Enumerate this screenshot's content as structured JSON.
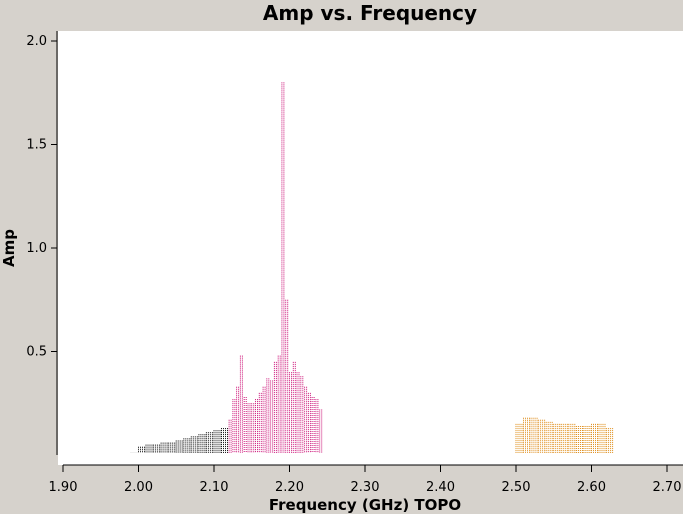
{
  "chart_data": {
    "type": "scatter",
    "title": "Amp vs. Frequency",
    "xlabel": "Frequency (GHz) TOPO",
    "ylabel": "Amp",
    "xlim": [
      1.9,
      2.7
    ],
    "ylim": [
      0.0,
      2.0
    ],
    "xticks": [
      "1.90",
      "2.00",
      "2.10",
      "2.20",
      "2.30",
      "2.40",
      "2.50",
      "2.60",
      "2.70"
    ],
    "yticks": [
      "0.5",
      "1.0",
      "1.5",
      "2.0"
    ],
    "grid": false,
    "series": [
      {
        "color": "#000000",
        "x": [
          1.99,
          2.0,
          2.01,
          2.02,
          2.03,
          2.04,
          2.05,
          2.06,
          2.07,
          2.08,
          2.09,
          2.1,
          2.11
        ],
        "y": [
          0.01,
          0.04,
          0.05,
          0.05,
          0.06,
          0.06,
          0.07,
          0.08,
          0.09,
          0.1,
          0.11,
          0.12,
          0.13
        ]
      },
      {
        "color": "#cc1177",
        "x": [
          2.12,
          2.125,
          2.13,
          2.135,
          2.14,
          2.145,
          2.15,
          2.155,
          2.16,
          2.165,
          2.17,
          2.175,
          2.18,
          2.185,
          2.19,
          2.195,
          2.2,
          2.205,
          2.21,
          2.215,
          2.22,
          2.225,
          2.23,
          2.235,
          2.24
        ],
        "y": [
          0.17,
          0.27,
          0.33,
          0.48,
          0.28,
          0.25,
          0.25,
          0.27,
          0.3,
          0.33,
          0.37,
          0.36,
          0.45,
          0.48,
          1.8,
          0.75,
          0.4,
          0.45,
          0.4,
          0.38,
          0.33,
          0.3,
          0.28,
          0.27,
          0.22
        ]
      },
      {
        "color": "#dd8811",
        "x": [
          2.5,
          2.51,
          2.52,
          2.53,
          2.54,
          2.55,
          2.56,
          2.57,
          2.58,
          2.59,
          2.6,
          2.61,
          2.62
        ],
        "y": [
          0.15,
          0.18,
          0.18,
          0.17,
          0.16,
          0.15,
          0.15,
          0.15,
          0.14,
          0.14,
          0.15,
          0.15,
          0.13
        ]
      }
    ]
  }
}
